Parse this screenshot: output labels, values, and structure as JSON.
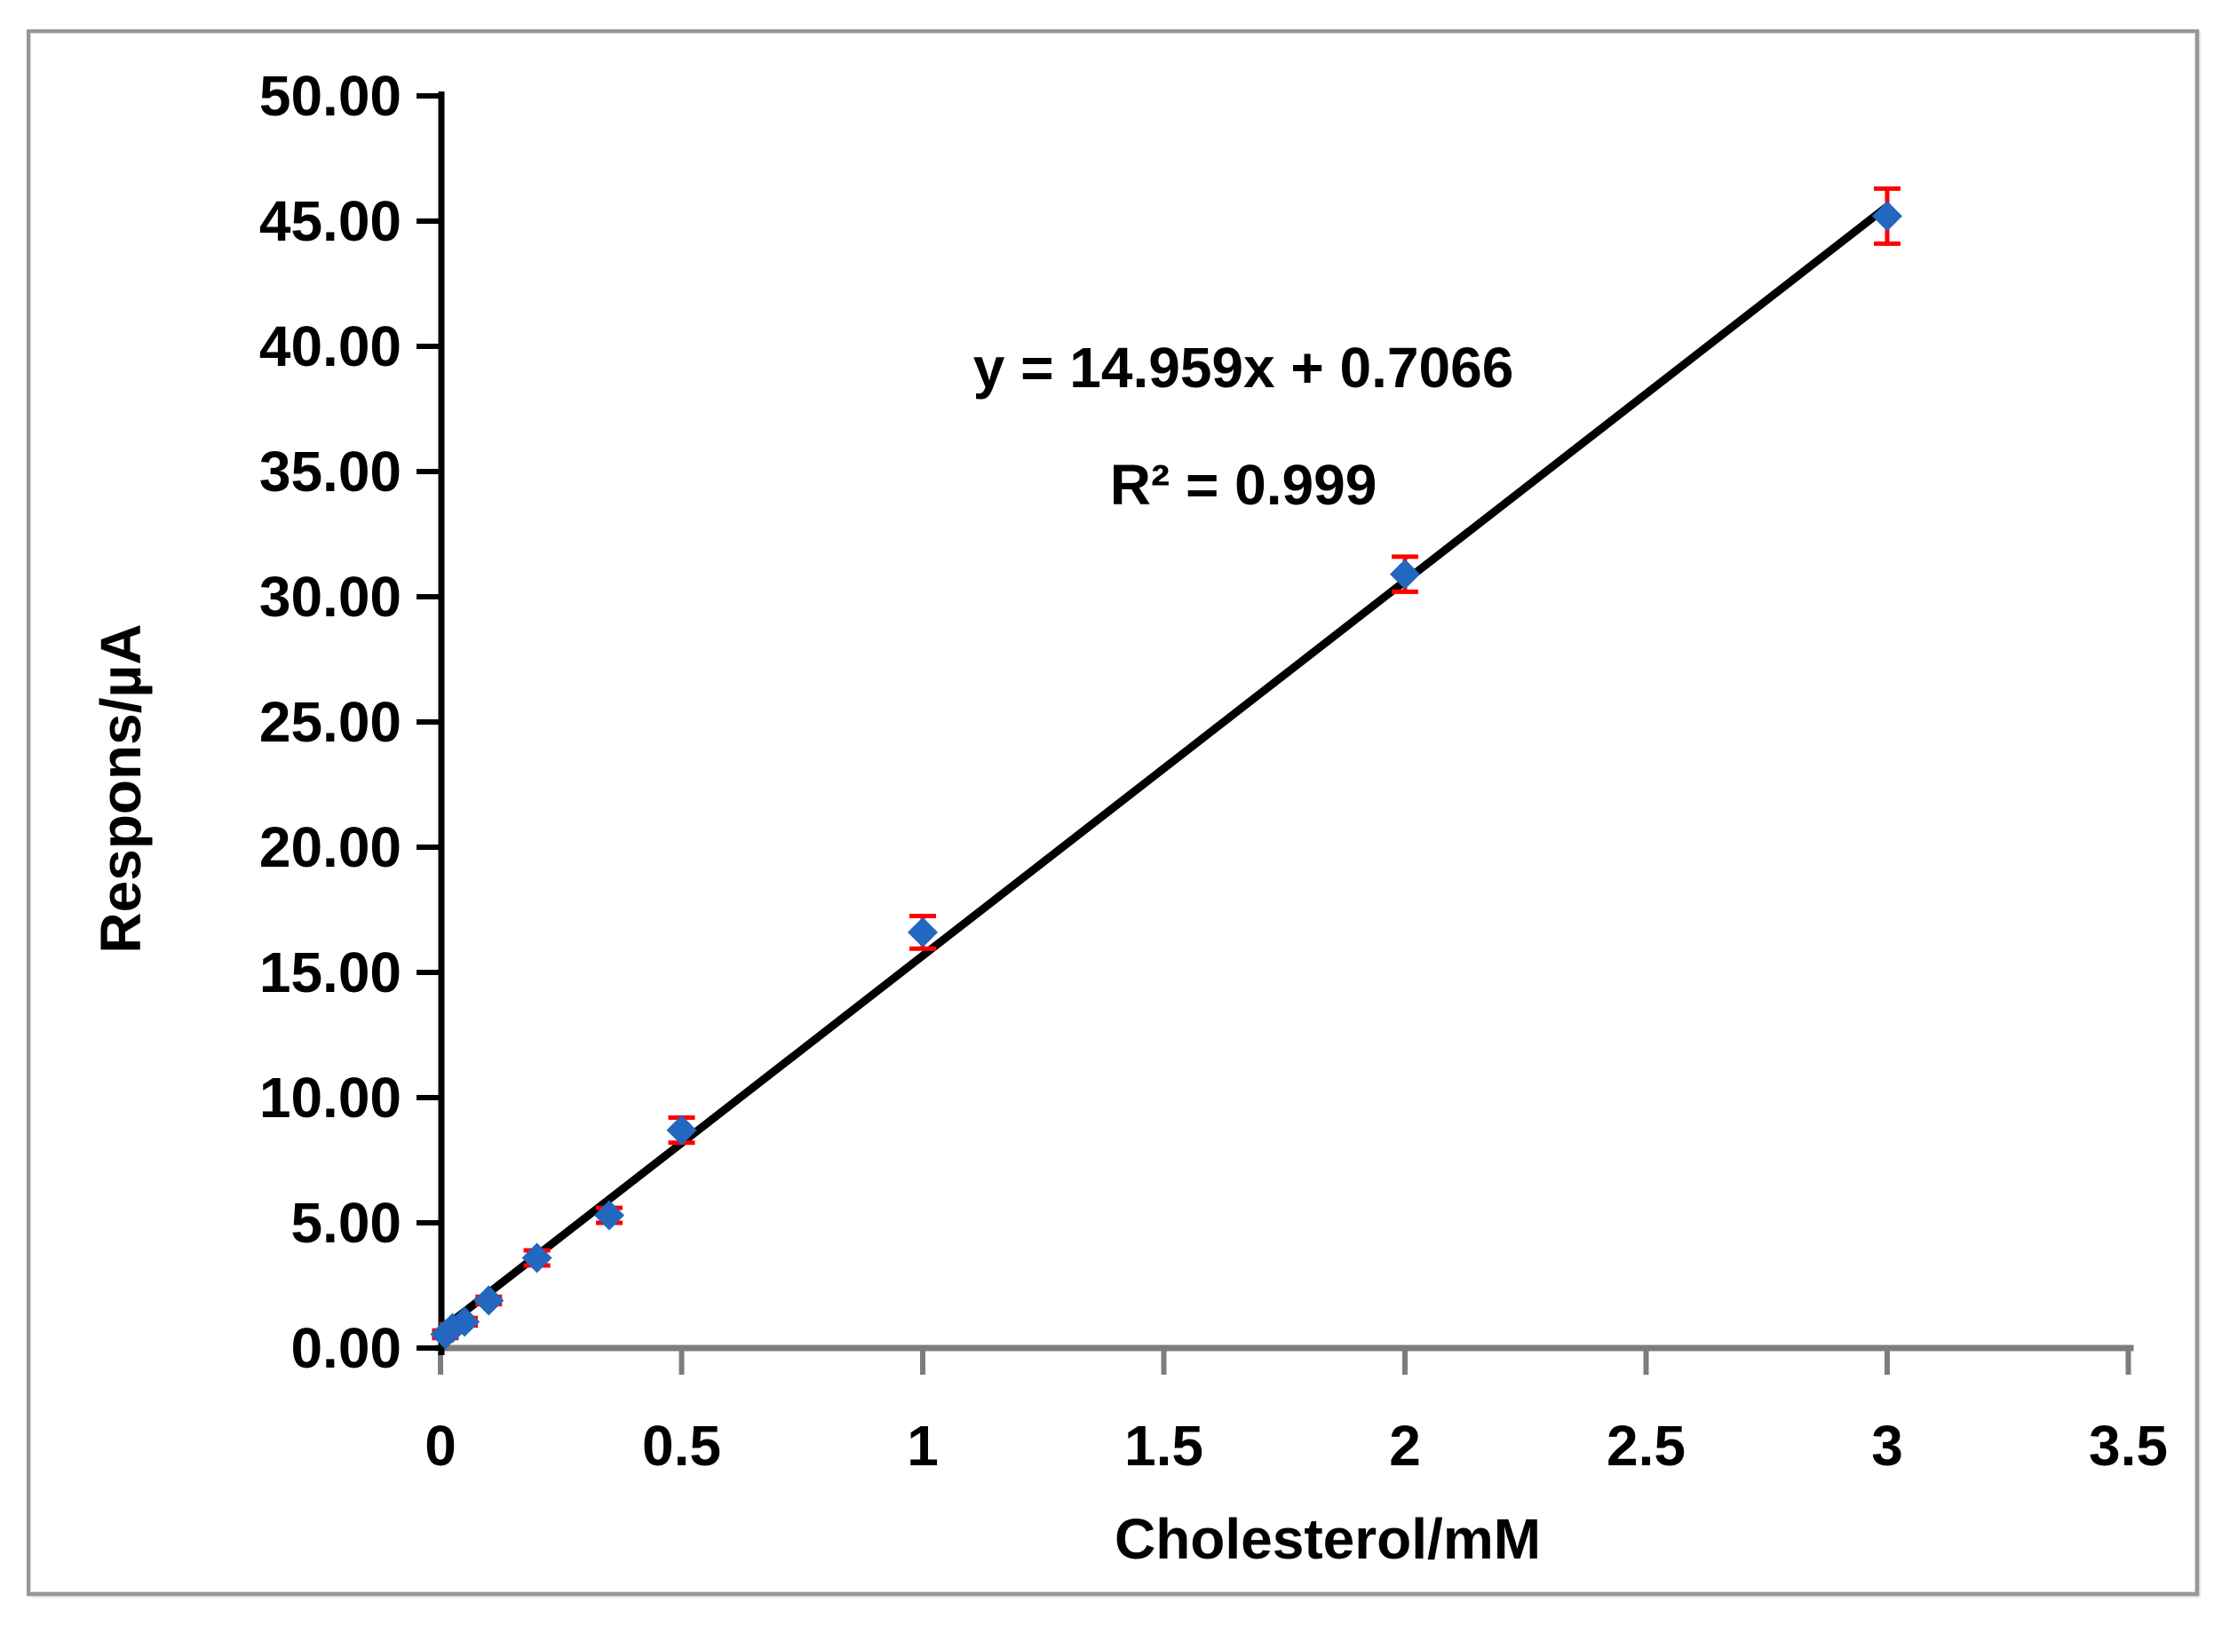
{
  "chart_data": {
    "type": "scatter",
    "title": "",
    "xlabel": "Cholesterol/mM",
    "ylabel": "Respons/µA",
    "xlim": [
      0,
      3.5
    ],
    "ylim": [
      0,
      50
    ],
    "grid": false,
    "legend": "none",
    "x_ticks": [
      0,
      0.5,
      1,
      1.5,
      2,
      2.5,
      3,
      3.5
    ],
    "x_tick_labels": [
      "0",
      "0.5",
      "1",
      "1.5",
      "2",
      "2.5",
      "3",
      "3.5"
    ],
    "y_ticks": [
      0,
      5,
      10,
      15,
      20,
      25,
      30,
      35,
      40,
      45,
      50
    ],
    "y_tick_labels": [
      "0.00",
      "5.00",
      "10.00",
      "15.00",
      "20.00",
      "25.00",
      "30.00",
      "35.00",
      "40.00",
      "45.00",
      "50.00"
    ],
    "points": [
      {
        "x": 0.01,
        "y": 0.55,
        "err": 0.15
      },
      {
        "x": 0.025,
        "y": 0.8,
        "err": 0.15
      },
      {
        "x": 0.05,
        "y": 1.05,
        "err": 0.15
      },
      {
        "x": 0.1,
        "y": 1.9,
        "err": 0.15
      },
      {
        "x": 0.2,
        "y": 3.6,
        "err": 0.3
      },
      {
        "x": 0.35,
        "y": 5.3,
        "err": 0.3
      },
      {
        "x": 0.5,
        "y": 8.7,
        "err": 0.5
      },
      {
        "x": 1,
        "y": 16.6,
        "err": 0.65
      },
      {
        "x": 2,
        "y": 30.9,
        "err": 0.7
      },
      {
        "x": 3,
        "y": 45.2,
        "err": 1.1
      }
    ],
    "trendline": {
      "slope": 14.959,
      "intercept": 0.7066,
      "x_start": 0.013,
      "x_end": 3.0
    },
    "annotation": {
      "line1": "y = 14.959x + 0.7066",
      "line2": "R² = 0.999"
    },
    "colors": {
      "marker": "#2367BE",
      "error_bar": "#FF0000",
      "trendline": "#000000",
      "x_axis": "#7D7D7D",
      "y_axis": "#000000",
      "text": "#000000",
      "frame_border": "#979797"
    }
  }
}
